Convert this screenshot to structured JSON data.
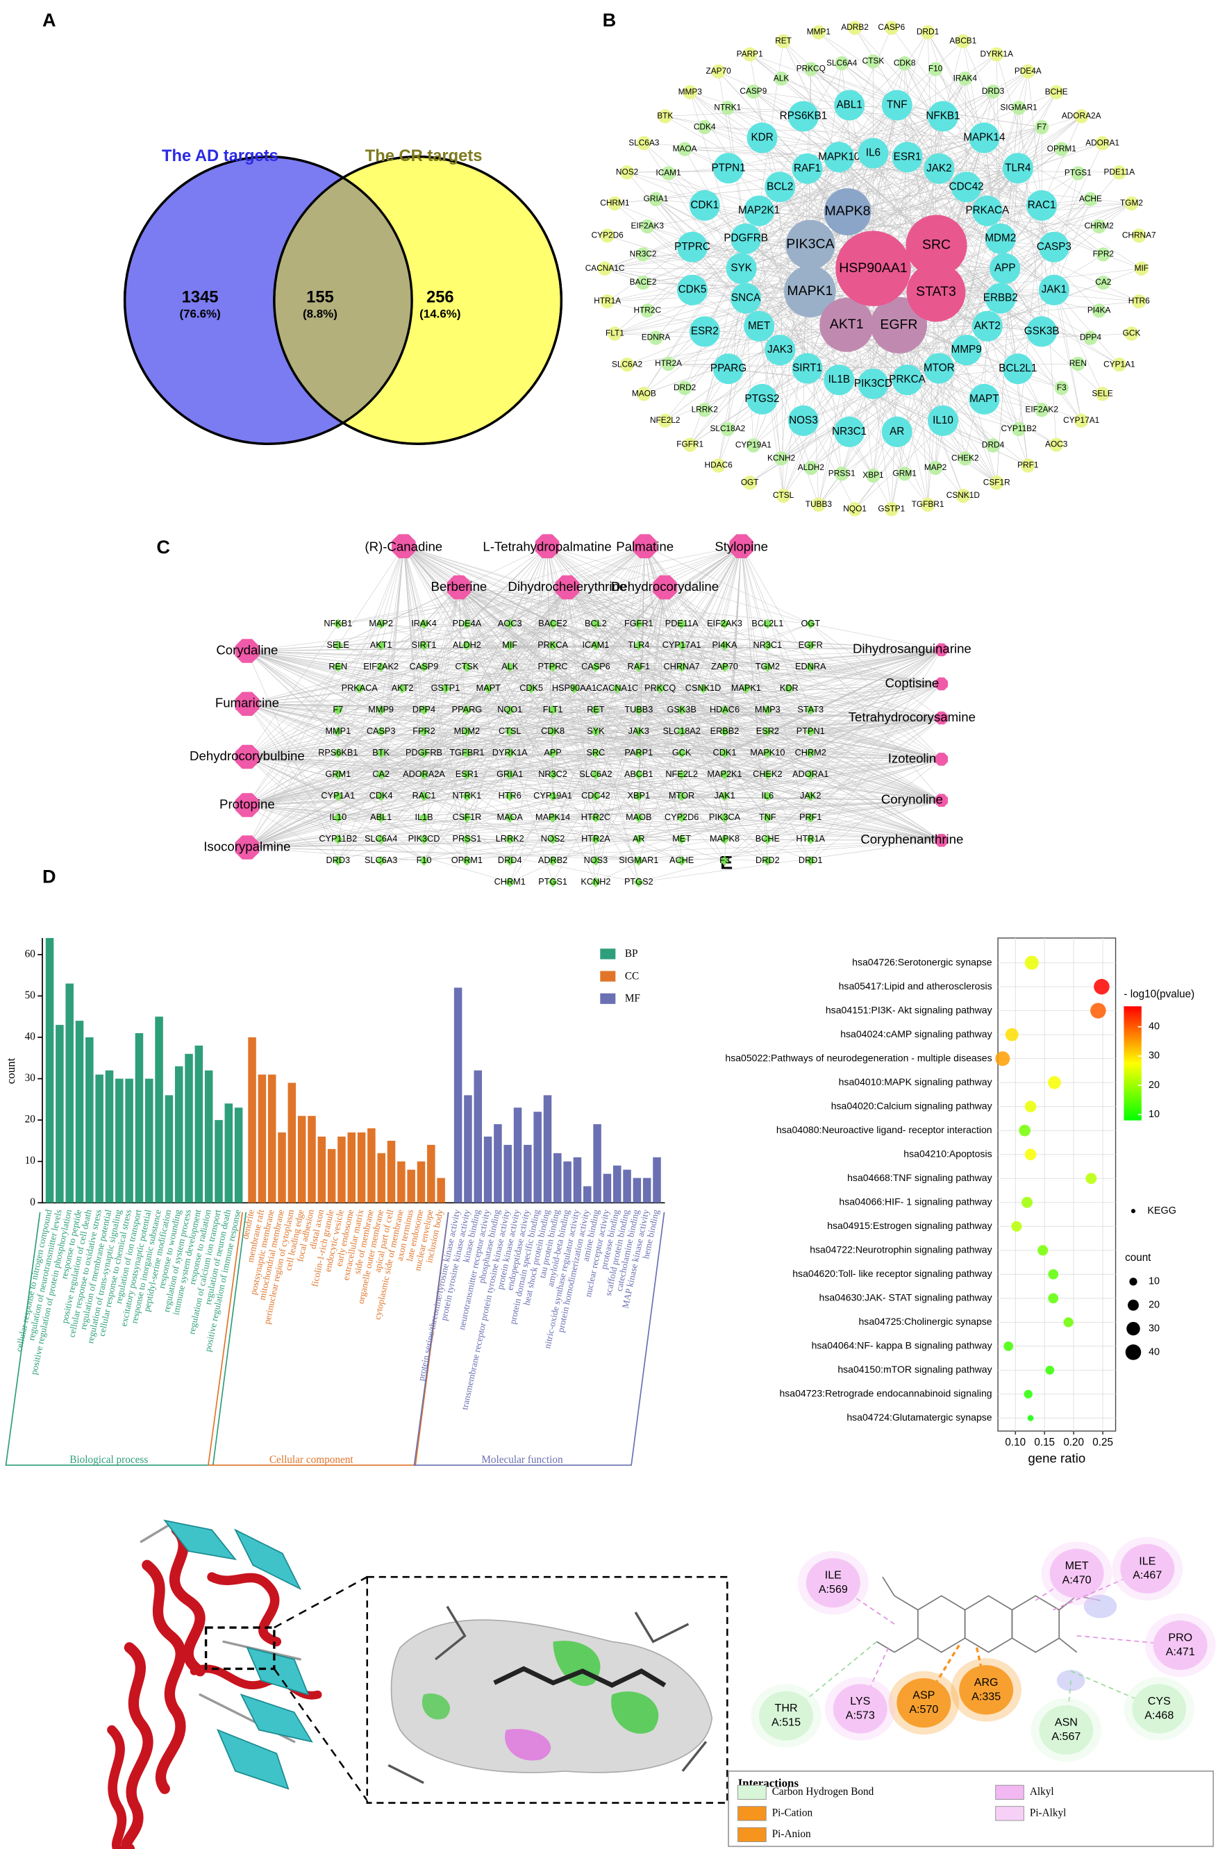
{
  "panel_labels": [
    "A",
    "B",
    "C",
    "D",
    "E"
  ],
  "venn": {
    "left_title": "The AD targets",
    "right_title": "The CR targets",
    "left_count": 1345,
    "left_percent": "(76.6%)",
    "overlap_count": 155,
    "overlap_percent": "(8.8%)",
    "right_count": 256,
    "right_percent": "(14.6%)",
    "left_color": "#7b7bf2",
    "right_color": "#ffff70",
    "overlap_color": "#b3b07c",
    "left_title_color": "#2a2ae6",
    "right_title_color": "#7f7a1e"
  },
  "network_b": {
    "hubs": [
      "HSP90AA1",
      "SRC",
      "STAT3",
      "EGFR",
      "AKT1",
      "MAPK1",
      "PIK3CA",
      "MAPK8"
    ],
    "core": [
      "IL6",
      "TNF",
      "ESR1",
      "NFKB1",
      "JAK2",
      "MAPK14",
      "CDC42",
      "TLR4",
      "PRKACA",
      "RAC1",
      "MDM2",
      "CASP3",
      "APP",
      "JAK1",
      "ERBB2",
      "GSK3B",
      "AKT2",
      "BCL2L1",
      "MMP9",
      "MAPT",
      "MTOR",
      "IL10",
      "PRKCA",
      "AR",
      "PIK3CD",
      "NR3C1",
      "IL1B",
      "NOS3",
      "SIRT1",
      "PTGS2",
      "JAK3",
      "PPARG",
      "MET",
      "ESR2",
      "SNCA",
      "CDK5",
      "SYK",
      "PTPRC",
      "PDGFRB",
      "CDK1",
      "MAP2K1",
      "PTPN1",
      "BCL2",
      "KDR",
      "RAF1",
      "RPS6KB1",
      "MAPK10",
      "ABL1"
    ],
    "peripheral": [
      "CTSK",
      "CASP6",
      "CDK8",
      "DRD1",
      "F10",
      "ABCB1",
      "IRAK4",
      "DYRK1A",
      "DRD3",
      "PDE4A",
      "SIGMAR1",
      "BCHE",
      "F7",
      "ADORA2A",
      "OPRM1",
      "ADORA1",
      "PTGS1",
      "PDE11A",
      "ACHE",
      "TGM2",
      "CHRM2",
      "CHRNA7",
      "FPR2",
      "MIF",
      "CA2",
      "HTR6",
      "PI4KA",
      "GCK",
      "DPP4",
      "CYP1A1",
      "REN",
      "SELE",
      "F3",
      "CYP17A1",
      "EIF2AK2",
      "AOC3",
      "CYP11B2",
      "PRF1",
      "DRD4",
      "CSF1R",
      "CHEK2",
      "CSNK1D",
      "MAP2",
      "TGFBR1",
      "GRM1",
      "GSTP1",
      "XBP1",
      "NQO1",
      "PRSS1",
      "TUBB3",
      "ALDH2",
      "CTSL",
      "KCNH2",
      "OGT",
      "CYP19A1",
      "HDAC6",
      "SLC18A2",
      "FGFR1",
      "LRRK2",
      "NFE2L2",
      "DRD2",
      "MAOB",
      "HTR2A",
      "SLC6A2",
      "EDNRA",
      "FLT1",
      "HTR2C",
      "HTR1A",
      "BACE2",
      "CACNA1C",
      "NR3C2",
      "CYP2D6",
      "EIF2AK3",
      "CHRM1",
      "GRIA1",
      "NOS2",
      "ICAM1",
      "SLC6A3",
      "MAOA",
      "BTK",
      "CDK4",
      "MMP3",
      "NTRK1",
      "ZAP70",
      "CASP9",
      "PARP1",
      "ALK",
      "RET",
      "PRKCQ",
      "MMP1",
      "SLC6A4",
      "ADRB2"
    ]
  },
  "network_c": {
    "compounds_top": [
      "(R)-Canadine",
      "L-Tetrahydropalmatine",
      "Palmatine",
      "Stylopine"
    ],
    "compounds_mid": [
      "Berberine",
      "Dihydrochelerythrine",
      "Dehydrocorydaline"
    ],
    "compounds_left": [
      "Corydaline",
      "Fumaricine",
      "Dehydrocorybulbine",
      "Protopine",
      "Isocorypalmine"
    ],
    "compounds_right": [
      "Dihydrosanguinarine",
      "Coptisine",
      "Tetrahydrocorysamine",
      "Izoteolin",
      "Corynoline",
      "Coryphenanthrine"
    ],
    "targets": [
      [
        "NFKB1",
        "MAP2",
        "IRAK4",
        "PDE4A",
        "AOC3",
        "BACE2",
        "BCL2",
        "FGFR1",
        "PDE11A",
        "EIF2AK3",
        "BCL2L1",
        "OGT"
      ],
      [
        "SELE",
        "AKT1",
        "SIRT1",
        "ALDH2",
        "MIF",
        "PRKCA",
        "ICAM1",
        "TLR4",
        "CYP17A1",
        "PI4KA",
        "NR3C1",
        "EGFR"
      ],
      [
        "REN",
        "EIF2AK2",
        "CASP9",
        "CTSK",
        "ALK",
        "PTPRC",
        "CASP6",
        "RAF1",
        "CHRNA7",
        "ZAP70",
        "TGM2",
        "EDNRA"
      ],
      [
        "PRKACA",
        "AKT2",
        "GSTP1",
        "MAPT",
        "CDK5",
        "HSP90AA1",
        "CACNA1C",
        "PRKCQ",
        "CSNK1D",
        "MAPK1",
        "KDR"
      ],
      [
        "F7",
        "MMP9",
        "DPP4",
        "PPARG",
        "NQO1",
        "FLT1",
        "RET",
        "TUBB3",
        "GSK3B",
        "HDAC6",
        "MMP3",
        "STAT3"
      ],
      [
        "MMP1",
        "CASP3",
        "FPR2",
        "MDM2",
        "CTSL",
        "CDK8",
        "SYK",
        "JAK3",
        "SLC18A2",
        "ERBB2",
        "ESR2",
        "PTPN1"
      ],
      [
        "RPS6KB1",
        "BTK",
        "PDGFRB",
        "TGFBR1",
        "DYRK1A",
        "APP",
        "SRC",
        "PARP1",
        "GCK",
        "CDK1",
        "MAPK10",
        "CHRM2"
      ],
      [
        "GRM1",
        "CA2",
        "ADORA2A",
        "ESR1",
        "GRIA1",
        "NR3C2",
        "SLC6A2",
        "ABCB1",
        "NFE2L2",
        "MAP2K1",
        "CHEK2",
        "ADORA1"
      ],
      [
        "CYP1A1",
        "CDK4",
        "RAC1",
        "NTRK1",
        "HTR6",
        "CYP19A1",
        "CDC42",
        "XBP1",
        "MTOR",
        "JAK1",
        "IL6",
        "JAK2"
      ],
      [
        "IL10",
        "ABL1",
        "IL1B",
        "CSF1R",
        "MAOA",
        "MAPK14",
        "HTR2C",
        "MAOB",
        "CYP2D6",
        "PIK3CA",
        "TNF",
        "PRF1"
      ],
      [
        "CYP11B2",
        "SLC6A4",
        "PIK3CD",
        "PRSS1",
        "LRRK2",
        "NOS2",
        "HTR2A",
        "AR",
        "MET",
        "MAPK8",
        "BCHE",
        "HTR1A"
      ],
      [
        "DRD3",
        "SLC6A3",
        "F10",
        "OPRM1",
        "DRD4",
        "ADRB2",
        "NOS3",
        "SIGMAR1",
        "ACHE",
        "F3",
        "DRD2",
        "DRD1"
      ],
      [
        "CHRM1",
        "PTGS1",
        "KCNH2",
        "PTGS2"
      ]
    ]
  },
  "chart_data": [
    {
      "type": "bar",
      "ylabel": "count",
      "ylim": [
        0,
        64
      ],
      "yticks": [
        0,
        10,
        20,
        30,
        40,
        50,
        60
      ],
      "legend": "top-right",
      "series": [
        {
          "name": "BP",
          "group_label": "Biological process",
          "color": "#2e9e7b",
          "categories": [
            "cellular response to nitrogen compound",
            "regulation of neurotransmitter levels",
            "positive regulation of protein phosphorylation",
            "response to peptide",
            "positive regulation of cell death",
            "cellular response to oxidative stress",
            "regulation of membrane potential",
            "regulation of trans-synaptic signaling",
            "cellular response to chemical stress",
            "regulation of ion transport",
            "excitatory postsynaptic potential",
            "response to inorganic substance",
            "peptidyl-serine modification",
            "response to wounding",
            "regulation of system process",
            "immune system development",
            "response to radiation",
            "regulation of calcium ion transport",
            "regulation of neuron death",
            "positive regulation of immune response"
          ],
          "values": [
            64,
            43,
            53,
            44,
            40,
            31,
            32,
            30,
            30,
            41,
            30,
            45,
            26,
            33,
            36,
            38,
            32,
            20,
            24,
            23
          ]
        },
        {
          "name": "CC",
          "group_label": "Cellular component",
          "color": "#e0752a",
          "categories": [
            "dendrite",
            "membrane raft",
            "postsynaptic membrane",
            "mitochondrial membrane",
            "perinuclear region of cytoplasm",
            "cell leading edge",
            "focal adhesion",
            "distal axon",
            "ficolin-1-rich granule",
            "endocytic vesicle",
            "early endosome",
            "extracellular matrix",
            "side of membrane",
            "organelle outer membrane",
            "apical part of cell",
            "cytoplasmic side of membrane",
            "axon terminus",
            "late endosome",
            "nuclear envelope",
            "inclusion body"
          ],
          "values": [
            40,
            31,
            31,
            17,
            29,
            21,
            21,
            16,
            13,
            16,
            17,
            17,
            18,
            12,
            15,
            10,
            8,
            10,
            14,
            6
          ]
        },
        {
          "name": "MF",
          "group_label": "Molecular function",
          "color": "#6a70b2",
          "categories": [
            "protein serine/threonine/tyrosine kinase activity",
            "protein tyrosine kinase activity",
            "kinase binding",
            "neurotransmitter receptor activity",
            "phosphatase binding",
            "transmembrane receptor protein tyrosine kinase activity",
            "protein kinase activity",
            "endopeptidase activity",
            "protein domain specific binding",
            "heat shock protein binding",
            "tau protein binding",
            "amyloid-beta binding",
            "nitric-oxide synthase regulator activity",
            "protein homodimerization activity",
            "amine binding",
            "nuclear receptor activity",
            "protease binding",
            "scaffold protein binding",
            "catecholamine binding",
            "MAP kinase kinase activity",
            "heme binding"
          ],
          "values": [
            52,
            26,
            32,
            16,
            19,
            14,
            23,
            14,
            22,
            26,
            12,
            10,
            11,
            4,
            19,
            7,
            9,
            8,
            6,
            6,
            11
          ]
        }
      ]
    },
    {
      "type": "bubble",
      "xlabel": "gene ratio",
      "categories": [
        "hsa04726:Serotonergic synapse",
        "hsa05417:Lipid and atherosclerosis",
        "hsa04151:PI3K- Akt signaling pathway",
        "hsa04024:cAMP signaling pathway",
        "hsa05022:Pathways of neurodegeneration - multiple diseases",
        "hsa04010:MAPK signaling pathway",
        "hsa04020:Calcium signaling pathway",
        "hsa04080:Neuroactive ligand- receptor interaction",
        "hsa04210:Apoptosis",
        "hsa04668:TNF signaling pathway",
        "hsa04066:HIF- 1 signaling pathway",
        "hsa04915:Estrogen signaling pathway",
        "hsa04722:Neurotrophin signaling pathway",
        "hsa04620:Toll- like receptor signaling pathway",
        "hsa04630:JAK- STAT signaling pathway",
        "hsa04725:Cholinergic synapse",
        "hsa04064:NF- kappa B signaling pathway",
        "hsa04150:mTOR signaling pathway",
        "hsa04723:Retrograde endocannabinoid signaling",
        "hsa04724:Glutamatergic synapse"
      ],
      "x": [
        0.128,
        0.248,
        0.242,
        0.094,
        0.078,
        0.167,
        0.126,
        0.116,
        0.126,
        0.23,
        0.12,
        0.102,
        0.147,
        0.165,
        0.165,
        0.191,
        0.088,
        0.159,
        0.122,
        0.126
      ],
      "sizes": [
        32,
        40,
        40,
        28,
        35,
        28,
        22,
        22,
        22,
        20,
        20,
        18,
        18,
        17,
        17,
        16,
        15,
        13,
        12,
        6
      ],
      "color_values": [
        26,
        47,
        40,
        30,
        35,
        27,
        26,
        17,
        27,
        22,
        20,
        22,
        17,
        15,
        15,
        16,
        13,
        12,
        11,
        9
      ],
      "xlim": [
        0.07,
        0.272
      ],
      "xticks": [
        {
          "value": 0.1,
          "label": "0.10"
        },
        0.15,
        {
          "value": 0.2,
          "label": "0.20"
        },
        0.25
      ],
      "grid": true,
      "colors": [
        "#00ff00",
        "#ffff00",
        "#ff0000"
      ],
      "colorbar_title": "- log10(pvalue)",
      "clim": [
        8,
        47
      ],
      "cticks": [
        10,
        20,
        30,
        40
      ],
      "shape_legend": "KEGG",
      "size_title": "count",
      "size_ticks": [
        10,
        20,
        30,
        40
      ]
    }
  ],
  "docking": {
    "residues": [
      {
        "name": "ILE",
        "chain": "A:569",
        "color": "#f5c6f5"
      },
      {
        "name": "MET",
        "chain": "A:470",
        "color": "#f5c6f5"
      },
      {
        "name": "ILE",
        "chain": "A:467",
        "color": "#f5c6f5"
      },
      {
        "name": "PRO",
        "chain": "A:471",
        "color": "#f5c6f5"
      },
      {
        "name": "CYS",
        "chain": "A:468",
        "color": "#d8f5d8"
      },
      {
        "name": "ASN",
        "chain": "A:567",
        "color": "#d8f5d8"
      },
      {
        "name": "ARG",
        "chain": "A:335",
        "color": "#f7a030"
      },
      {
        "name": "ASP",
        "chain": "A:570",
        "color": "#f7a030"
      },
      {
        "name": "LYS",
        "chain": "A:573",
        "color": "#f5c6f5"
      },
      {
        "name": "THR",
        "chain": "A:515",
        "color": "#d8f5d8"
      }
    ],
    "legend_title": "Interactions",
    "legend": [
      {
        "name": "Carbon Hydrogen Bond",
        "color": "#d8f5d8"
      },
      {
        "name": "Pi-Cation",
        "color": "#f7941d"
      },
      {
        "name": "Pi-Anion",
        "color": "#f7941d"
      },
      {
        "name": "Alkyl",
        "color": "#f2b8f2"
      },
      {
        "name": "Pi-Alkyl",
        "color": "#f7d0f7"
      }
    ]
  }
}
